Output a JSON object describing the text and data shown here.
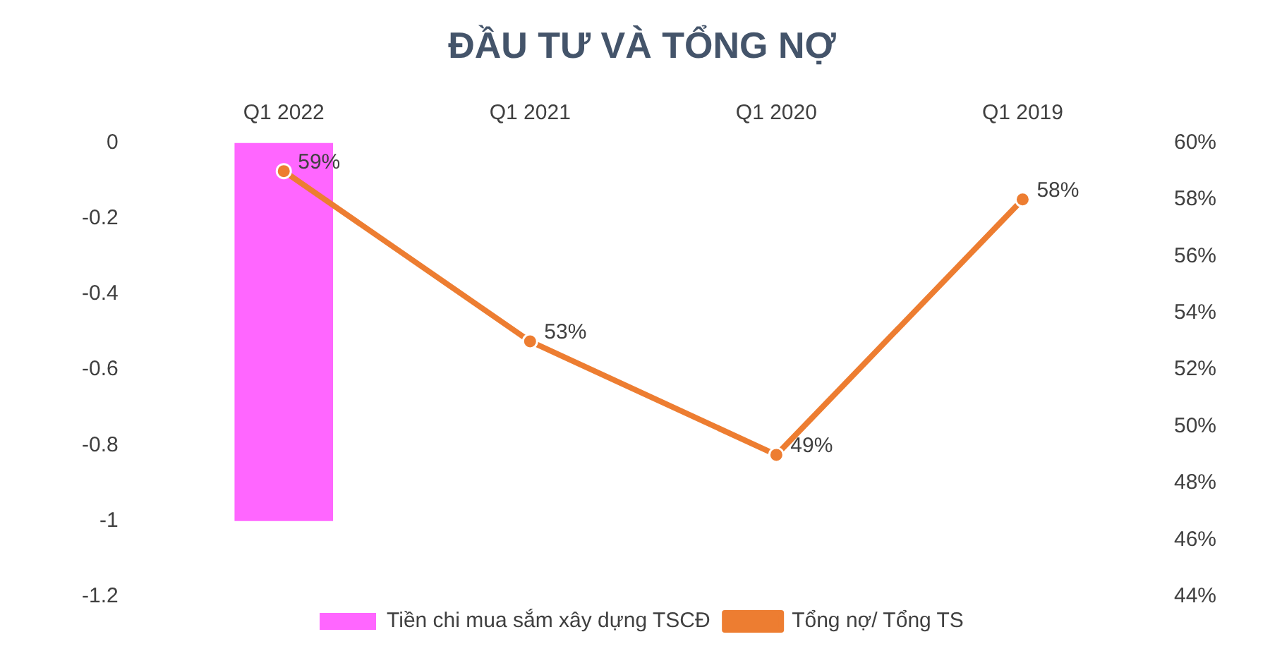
{
  "chart_data": {
    "type": "bar",
    "title": "ĐẦU TƯ VÀ TỔNG NỢ",
    "categories": [
      "Q1 2022",
      "Q1 2021",
      "Q1 2020",
      "Q1 2019"
    ],
    "series": [
      {
        "name": "Tiền chi mua sắm xây dựng TSCĐ",
        "color": "#ff66ff",
        "values": [
          -1,
          null,
          null,
          null
        ]
      },
      {
        "name": "Tổng nợ/ Tổng TS",
        "type": "line",
        "axis": "y2",
        "color": "#ed7d31",
        "marker": "circle",
        "values": [
          59,
          53,
          49,
          58
        ],
        "value_labels": [
          "59%",
          "53%",
          "49%",
          "58%"
        ]
      }
    ],
    "ylim": [
      -1.2,
      0
    ],
    "yticks": [
      0,
      -0.2,
      -0.4,
      -0.6,
      -0.8,
      -1,
      -1.2
    ],
    "y2lim": [
      44,
      60
    ],
    "y2ticks": [
      {
        "value": 44,
        "label": "44%"
      },
      {
        "value": 46,
        "label": "46%"
      },
      {
        "value": 48,
        "label": "48%"
      },
      {
        "value": 50,
        "label": "50%"
      },
      {
        "value": 52,
        "label": "52%"
      },
      {
        "value": 54,
        "label": "54%"
      },
      {
        "value": 56,
        "label": "56%"
      },
      {
        "value": 58,
        "label": "58%"
      },
      {
        "value": 60,
        "label": "60%"
      }
    ],
    "grid": false,
    "legend": "bottom"
  }
}
